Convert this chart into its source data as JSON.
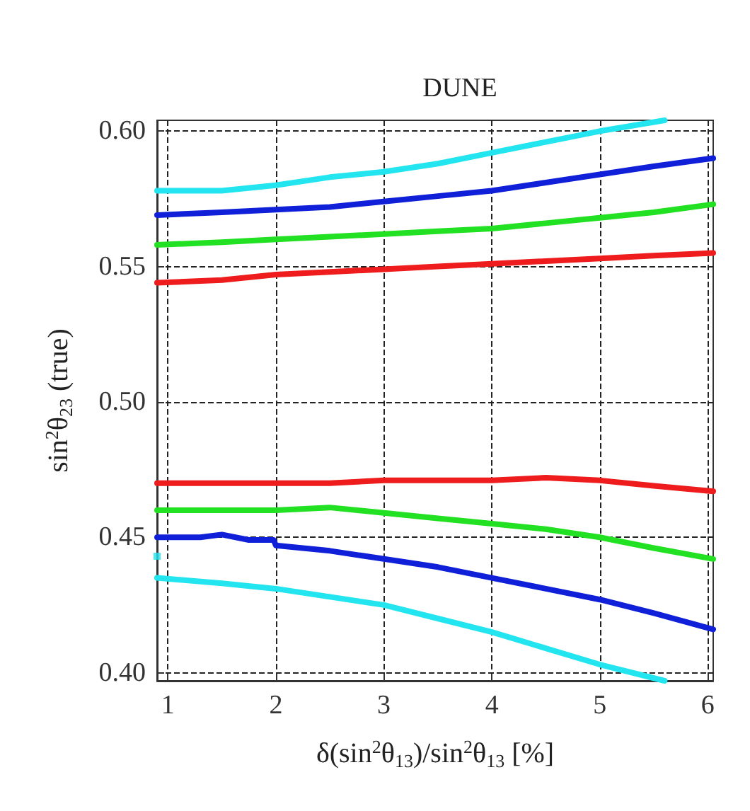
{
  "chart_data": {
    "type": "line",
    "title": "DUNE",
    "xlabel": "δ(sin$^{2}$θ$_{13}$)/sin$^{2}$θ$_{13}$ [%]",
    "ylabel": "sin$^{2}$θ$_{23}$ (true)",
    "xlim": [
      0.9,
      6.05
    ],
    "xticks": [
      1,
      2,
      3,
      4,
      5,
      6
    ],
    "ylim": [
      0.397,
      0.604
    ],
    "yticks": [
      {
        "value": 0.4,
        "label": "0.40"
      },
      0.45,
      {
        "value": 0.5,
        "label": "0.50"
      },
      0.55,
      {
        "value": 0.6,
        "label": "0.60"
      }
    ],
    "grid": true,
    "marker": "none",
    "line_style": "solid",
    "series": [
      {
        "color": "#22e5f0",
        "x": [
          0.9,
          1.5,
          2,
          2.5,
          3,
          3.5,
          4,
          4.5,
          5,
          5.6
        ],
        "values": [
          0.578,
          0.578,
          0.58,
          0.583,
          0.585,
          0.588,
          0.592,
          0.596,
          0.6,
          0.604
        ]
      },
      {
        "color": "#1020d8",
        "x": [
          0.9,
          1.5,
          2,
          2.5,
          3,
          3.5,
          4,
          4.5,
          5,
          5.5,
          6.05
        ],
        "values": [
          0.569,
          0.57,
          0.571,
          0.572,
          0.574,
          0.576,
          0.578,
          0.581,
          0.584,
          0.587,
          0.59
        ]
      },
      {
        "color": "#22e022",
        "x": [
          0.9,
          1.5,
          2,
          2.5,
          3,
          3.5,
          4,
          4.5,
          5,
          5.5,
          6.05
        ],
        "values": [
          0.558,
          0.559,
          0.56,
          0.561,
          0.562,
          0.563,
          0.564,
          0.566,
          0.568,
          0.57,
          0.573
        ]
      },
      {
        "color": "#ee1c1c",
        "x": [
          0.9,
          1.5,
          2,
          2.5,
          3,
          3.5,
          4,
          4.5,
          5,
          5.5,
          6.05
        ],
        "values": [
          0.544,
          0.545,
          0.547,
          0.548,
          0.549,
          0.55,
          0.551,
          0.552,
          0.553,
          0.554,
          0.555
        ]
      },
      {
        "color": "#ee1c1c",
        "x": [
          0.9,
          1.5,
          2,
          2.5,
          3,
          3.5,
          4,
          4.5,
          5,
          5.5,
          6.05
        ],
        "values": [
          0.47,
          0.47,
          0.47,
          0.47,
          0.471,
          0.471,
          0.471,
          0.472,
          0.471,
          0.469,
          0.467
        ]
      },
      {
        "color": "#22e022",
        "x": [
          0.9,
          1.5,
          2,
          2.5,
          3,
          3.5,
          4,
          4.5,
          5,
          5.5,
          6.05
        ],
        "values": [
          0.46,
          0.46,
          0.46,
          0.461,
          0.459,
          0.457,
          0.455,
          0.453,
          0.45,
          0.446,
          0.442
        ]
      },
      {
        "color": "#1020d8",
        "x": [
          0.9,
          1.3,
          1.5,
          1.75,
          1.98,
          2,
          2.5,
          3,
          3.5,
          4,
          4.5,
          5,
          5.5,
          6.05
        ],
        "values": [
          0.45,
          0.45,
          0.451,
          0.449,
          0.449,
          0.447,
          0.445,
          0.442,
          0.439,
          0.435,
          0.431,
          0.427,
          0.422,
          0.416
        ]
      },
      {
        "color": "#22e5f0",
        "x": [
          0.9,
          1.5,
          2,
          2.5,
          3,
          3.5,
          4,
          4.5,
          5,
          5.6
        ],
        "values": [
          0.435,
          0.433,
          0.431,
          0.428,
          0.425,
          0.42,
          0.415,
          0.409,
          0.403,
          0.397
        ]
      },
      {
        "type": "scatter",
        "marker": "square",
        "color": "#22e5f0",
        "x": [
          0.9
        ],
        "values": [
          0.443
        ]
      }
    ]
  }
}
